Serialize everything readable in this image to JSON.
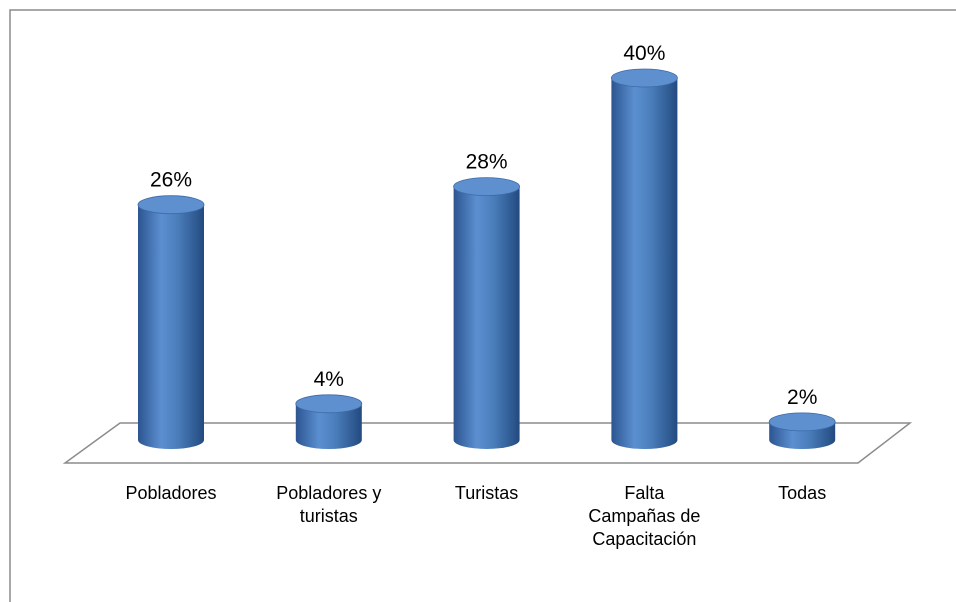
{
  "chart_data": {
    "type": "bar",
    "categories": [
      "Pobladores",
      "Pobladores y turistas",
      "Turistas",
      "Falta Campañas de Capacitación",
      "Todas"
    ],
    "values": [
      26,
      4,
      28,
      40,
      2
    ],
    "value_labels": [
      "26%",
      "4%",
      "28%",
      "40%",
      "2%"
    ],
    "color": "#4a7ebb"
  }
}
